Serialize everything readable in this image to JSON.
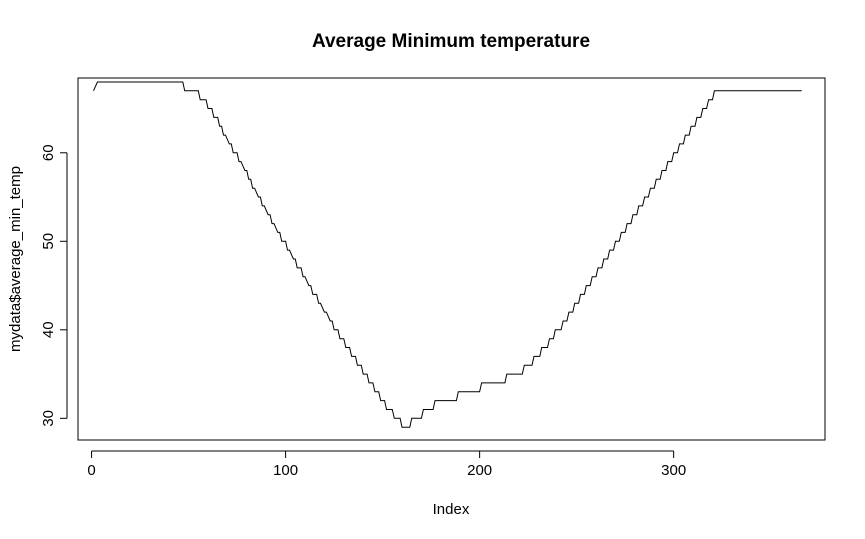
{
  "chart_data": {
    "type": "line",
    "title": "Average Minimum temperature",
    "xlabel": "Index",
    "ylabel": "mydata$average_min_temp",
    "xlim": [
      -7,
      378
    ],
    "ylim": [
      27.55,
      68.45
    ],
    "x_ticks": [
      "0",
      "100",
      "200",
      "300"
    ],
    "y_ticks": [
      "30",
      "40",
      "50",
      "60"
    ],
    "grid": false,
    "legend": "none",
    "line_style": "step",
    "series": [
      {
        "x": [
          1,
          3,
          47,
          48,
          55,
          56,
          59,
          60,
          62,
          63,
          65,
          66,
          67,
          68,
          69,
          71,
          72,
          73,
          75,
          76,
          77,
          79,
          80,
          81,
          82,
          83,
          84,
          86,
          87,
          88,
          89,
          91,
          92,
          93,
          94,
          96,
          97,
          98,
          100,
          101,
          102,
          104,
          105,
          106,
          108,
          109,
          110,
          112,
          113,
          114,
          116,
          117,
          118,
          120,
          121,
          123,
          124,
          125,
          127,
          128,
          130,
          131,
          133,
          134,
          136,
          137,
          139,
          140,
          142,
          143,
          145,
          146,
          148,
          149,
          151,
          152,
          155,
          156,
          159,
          160,
          164,
          165,
          170,
          171,
          176,
          177,
          188,
          189,
          200,
          201,
          213,
          214,
          222,
          223,
          227,
          228,
          231,
          232,
          235,
          236,
          238,
          239,
          242,
          243,
          245,
          246,
          248,
          249,
          251,
          252,
          254,
          255,
          257,
          258,
          260,
          261,
          263,
          264,
          266,
          267,
          269,
          270,
          272,
          273,
          275,
          276,
          278,
          279,
          281,
          282,
          284,
          285,
          287,
          288,
          290,
          291,
          293,
          294,
          296,
          297,
          299,
          300,
          302,
          303,
          305,
          306,
          308,
          309,
          311,
          312,
          314,
          315,
          317,
          318,
          320,
          321,
          323,
          324,
          326,
          327,
          329,
          330,
          332,
          333,
          335,
          336,
          338,
          339,
          341,
          342,
          344,
          345,
          347,
          348,
          350,
          351,
          353,
          354,
          357,
          358,
          362,
          363,
          366
        ],
        "y": [
          67,
          68,
          68,
          67,
          67,
          66,
          66,
          65,
          65,
          64,
          64,
          63,
          63,
          62,
          62,
          61,
          61,
          60,
          60,
          59,
          59,
          58,
          58,
          57,
          57,
          56,
          56,
          55,
          55,
          54,
          54,
          53,
          53,
          52,
          52,
          51,
          51,
          50,
          50,
          49,
          49,
          48,
          48,
          47,
          47,
          46,
          46,
          45,
          45,
          44,
          44,
          43,
          43,
          42,
          42,
          41,
          41,
          40,
          40,
          39,
          39,
          38,
          38,
          37,
          37,
          36,
          36,
          35,
          35,
          34,
          34,
          33,
          33,
          32,
          32,
          31,
          31,
          30,
          30,
          29,
          29,
          30,
          30,
          31,
          31,
          32,
          32,
          33,
          33,
          34,
          34,
          35,
          35,
          36,
          36,
          37,
          37,
          38,
          38,
          39,
          39,
          40,
          40,
          41,
          41,
          42,
          42,
          43,
          43,
          44,
          44,
          45,
          45,
          46,
          46,
          47,
          47,
          48,
          48,
          49,
          49,
          50,
          50,
          51,
          51,
          52,
          52,
          53,
          53,
          54,
          54,
          55,
          55,
          56,
          56,
          57,
          57,
          58,
          58,
          59,
          59,
          60,
          60,
          61,
          61,
          62,
          62,
          63,
          63,
          64,
          64,
          65,
          65,
          66,
          66,
          67,
          67,
          67,
          67,
          67,
          67,
          67,
          67,
          67,
          67,
          67,
          67,
          67,
          67,
          67,
          67,
          67,
          67,
          67,
          67,
          67,
          67,
          67,
          67,
          67,
          67,
          67,
          67
        ]
      }
    ]
  }
}
